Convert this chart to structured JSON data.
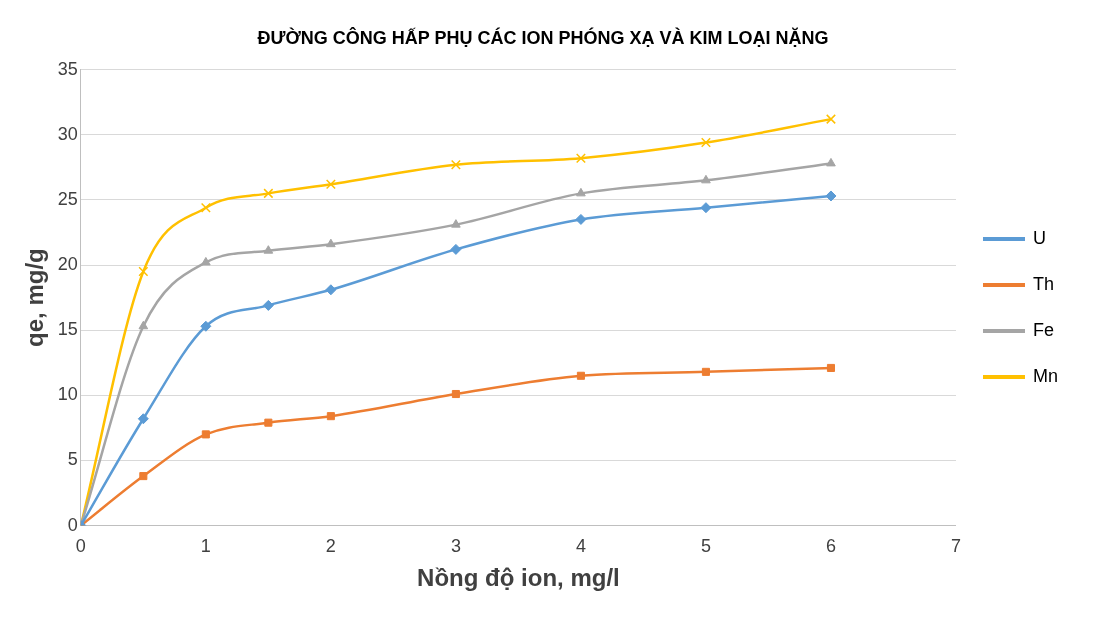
{
  "chart_data": {
    "type": "line",
    "title": "ĐƯỜNG CÔNG HẤP PHỤ CÁC ION PHÓNG XẠ VÀ KIM LOẠI NẶNG",
    "xlabel": "Nồng độ ion, mg/l",
    "ylabel": "qe, mg/g",
    "x": [
      0,
      0.5,
      1,
      1.5,
      2,
      3,
      4,
      5,
      6
    ],
    "series": [
      {
        "name": "U",
        "color": "#5b9bd5",
        "marker": "diamond",
        "values": [
          0,
          8.2,
          15.3,
          16.9,
          18.1,
          21.2,
          23.5,
          24.4,
          25.3
        ]
      },
      {
        "name": "Th",
        "color": "#ed7d31",
        "marker": "square",
        "values": [
          0,
          3.8,
          7.0,
          7.9,
          8.4,
          10.1,
          11.5,
          11.8,
          12.1
        ]
      },
      {
        "name": "Fe",
        "color": "#a5a5a5",
        "marker": "triangle",
        "values": [
          0,
          15.3,
          20.2,
          21.1,
          21.6,
          23.1,
          25.5,
          26.5,
          27.8
        ]
      },
      {
        "name": "Mn",
        "color": "#ffc000",
        "marker": "cross",
        "values": [
          0,
          19.5,
          24.4,
          25.5,
          26.2,
          27.7,
          28.2,
          29.4,
          31.2
        ]
      }
    ],
    "xlim": [
      0,
      7
    ],
    "xticks": [
      0,
      1,
      2,
      3,
      4,
      5,
      6,
      7
    ],
    "ylim": [
      0,
      35
    ],
    "yticks": [
      0,
      5,
      10,
      15,
      20,
      25,
      30,
      35
    ],
    "grid": "y",
    "legend": "right"
  }
}
